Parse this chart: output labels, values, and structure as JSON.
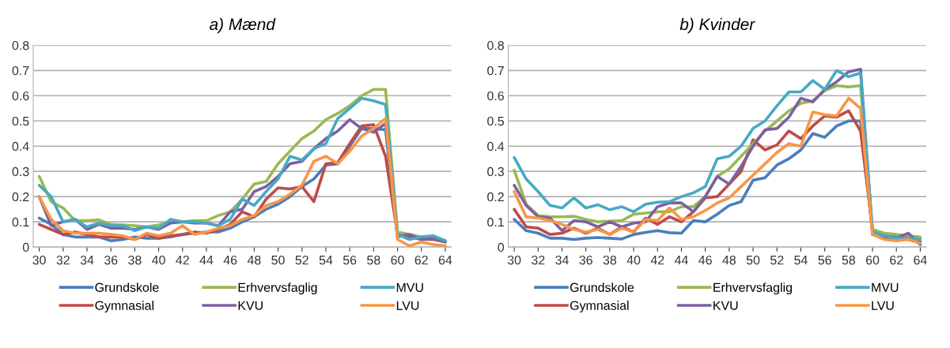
{
  "chart_data": [
    {
      "type": "line",
      "title": "a) Mænd",
      "x": [
        30,
        31,
        32,
        33,
        34,
        35,
        36,
        37,
        38,
        39,
        40,
        41,
        42,
        43,
        44,
        45,
        46,
        47,
        48,
        49,
        50,
        51,
        52,
        53,
        54,
        55,
        56,
        57,
        58,
        59,
        60,
        61,
        62,
        63,
        64
      ],
      "xlim": [
        29.5,
        64.5
      ],
      "xticks": [
        30,
        32,
        34,
        36,
        38,
        40,
        42,
        44,
        46,
        48,
        50,
        52,
        54,
        56,
        58,
        60,
        62,
        64
      ],
      "ylim": [
        0,
        0.8
      ],
      "yticks": [
        0,
        0.1,
        0.2,
        0.3,
        0.4,
        0.5,
        0.6,
        0.7,
        0.8
      ],
      "grid": "y",
      "legend": "bottom",
      "series": [
        {
          "name": "Grundskole",
          "color": "#4a7ebb",
          "values": [
            0.115,
            0.09,
            0.05,
            0.04,
            0.04,
            0.04,
            0.025,
            0.03,
            0.04,
            0.035,
            0.035,
            0.04,
            0.05,
            0.055,
            0.06,
            0.06,
            0.075,
            0.1,
            0.12,
            0.15,
            0.17,
            0.2,
            0.24,
            0.27,
            0.325,
            0.33,
            0.4,
            0.47,
            0.47,
            0.465,
            0.05,
            0.04,
            0.04,
            0.04,
            0.025
          ]
        },
        {
          "name": "Gymnasial",
          "color": "#be4b48",
          "values": [
            0.09,
            0.07,
            0.05,
            0.06,
            0.05,
            0.04,
            0.04,
            0.04,
            0.03,
            0.05,
            0.035,
            0.045,
            0.05,
            0.06,
            0.055,
            0.07,
            0.09,
            0.14,
            0.12,
            0.19,
            0.235,
            0.23,
            0.24,
            0.18,
            0.33,
            0.335,
            0.41,
            0.48,
            0.485,
            0.36,
            0.05,
            0.04,
            0.03,
            0.03,
            0.02
          ]
        },
        {
          "name": "Erhvervsfaglig",
          "color": "#98b954",
          "values": [
            0.28,
            0.18,
            0.155,
            0.105,
            0.105,
            0.108,
            0.09,
            0.088,
            0.085,
            0.08,
            0.088,
            0.1,
            0.1,
            0.105,
            0.105,
            0.125,
            0.14,
            0.19,
            0.25,
            0.26,
            0.33,
            0.38,
            0.43,
            0.46,
            0.505,
            0.53,
            0.56,
            0.6,
            0.625,
            0.625,
            0.06,
            0.05,
            0.04,
            0.035,
            0.025
          ]
        },
        {
          "name": "KVU",
          "color": "#7d60a0",
          "values": [
            0.2,
            0.085,
            0.1,
            0.11,
            0.07,
            0.09,
            0.075,
            0.075,
            0.07,
            0.08,
            0.07,
            0.095,
            0.1,
            0.095,
            0.095,
            0.085,
            0.14,
            0.15,
            0.22,
            0.24,
            0.28,
            0.33,
            0.34,
            0.39,
            0.43,
            0.46,
            0.505,
            0.47,
            0.455,
            0.49,
            0.04,
            0.05,
            0.03,
            0.035,
            0.02
          ]
        },
        {
          "name": "MVU",
          "color": "#46aac5",
          "values": [
            0.245,
            0.2,
            0.1,
            0.11,
            0.08,
            0.095,
            0.085,
            0.085,
            0.065,
            0.08,
            0.075,
            0.11,
            0.1,
            0.1,
            0.095,
            0.085,
            0.11,
            0.19,
            0.165,
            0.22,
            0.27,
            0.36,
            0.345,
            0.39,
            0.41,
            0.51,
            0.55,
            0.59,
            0.58,
            0.565,
            0.05,
            0.03,
            0.04,
            0.045,
            0.025
          ]
        },
        {
          "name": "LVU",
          "color": "#f79646",
          "values": [
            0.2,
            0.11,
            0.065,
            0.055,
            0.055,
            0.055,
            0.05,
            0.045,
            0.03,
            0.055,
            0.045,
            0.055,
            0.085,
            0.05,
            0.06,
            0.075,
            0.085,
            0.11,
            0.125,
            0.165,
            0.18,
            0.21,
            0.245,
            0.34,
            0.36,
            0.33,
            0.38,
            0.44,
            0.47,
            0.51,
            0.03,
            0.005,
            0.02,
            0.01,
            0.005
          ]
        }
      ]
    },
    {
      "type": "line",
      "title": "b) Kvinder",
      "x": [
        30,
        31,
        32,
        33,
        34,
        35,
        36,
        37,
        38,
        39,
        40,
        41,
        42,
        43,
        44,
        45,
        46,
        47,
        48,
        49,
        50,
        51,
        52,
        53,
        54,
        55,
        56,
        57,
        58,
        59,
        60,
        61,
        62,
        63,
        64
      ],
      "xlim": [
        29.5,
        64.5
      ],
      "xticks": [
        30,
        32,
        34,
        36,
        38,
        40,
        42,
        44,
        46,
        48,
        50,
        52,
        54,
        56,
        58,
        60,
        62,
        64
      ],
      "ylim": [
        0,
        0.8
      ],
      "yticks": [
        0,
        0.1,
        0.2,
        0.3,
        0.4,
        0.5,
        0.6,
        0.7,
        0.8
      ],
      "grid": "y",
      "legend": "bottom",
      "series": [
        {
          "name": "Grundskole",
          "color": "#4a7ebb",
          "values": [
            0.11,
            0.065,
            0.055,
            0.035,
            0.035,
            0.03,
            0.035,
            0.038,
            0.035,
            0.032,
            0.05,
            0.058,
            0.065,
            0.057,
            0.055,
            0.105,
            0.1,
            0.13,
            0.165,
            0.18,
            0.265,
            0.275,
            0.325,
            0.35,
            0.385,
            0.45,
            0.435,
            0.48,
            0.5,
            0.5,
            0.06,
            0.05,
            0.04,
            0.03,
            0.02
          ]
        },
        {
          "name": "Gymnasial",
          "color": "#be4b48",
          "values": [
            0.15,
            0.08,
            0.075,
            0.05,
            0.055,
            0.075,
            0.055,
            0.075,
            0.05,
            0.08,
            0.06,
            0.115,
            0.09,
            0.12,
            0.1,
            0.14,
            0.195,
            0.2,
            0.25,
            0.3,
            0.425,
            0.385,
            0.405,
            0.46,
            0.43,
            0.48,
            0.52,
            0.515,
            0.54,
            0.46,
            0.07,
            0.04,
            0.03,
            0.05,
            0.02
          ]
        },
        {
          "name": "Erhvervsfaglig",
          "color": "#98b954",
          "values": [
            0.305,
            0.17,
            0.125,
            0.12,
            0.12,
            0.122,
            0.11,
            0.1,
            0.103,
            0.105,
            0.13,
            0.135,
            0.14,
            0.14,
            0.16,
            0.16,
            0.2,
            0.28,
            0.31,
            0.36,
            0.41,
            0.46,
            0.5,
            0.54,
            0.57,
            0.58,
            0.62,
            0.64,
            0.635,
            0.64,
            0.07,
            0.055,
            0.05,
            0.045,
            0.04
          ]
        },
        {
          "name": "KVU",
          "color": "#7d60a0",
          "values": [
            0.245,
            0.165,
            0.12,
            0.115,
            0.065,
            0.105,
            0.1,
            0.08,
            0.1,
            0.08,
            0.095,
            0.1,
            0.16,
            0.175,
            0.175,
            0.14,
            0.2,
            0.28,
            0.25,
            0.32,
            0.4,
            0.465,
            0.47,
            0.515,
            0.59,
            0.575,
            0.625,
            0.655,
            0.695,
            0.705,
            0.05,
            0.04,
            0.035,
            0.055,
            0.01
          ]
        },
        {
          "name": "MVU",
          "color": "#46aac5",
          "values": [
            0.355,
            0.27,
            0.22,
            0.165,
            0.155,
            0.195,
            0.155,
            0.168,
            0.148,
            0.16,
            0.14,
            0.17,
            0.178,
            0.18,
            0.2,
            0.215,
            0.24,
            0.35,
            0.36,
            0.4,
            0.47,
            0.5,
            0.56,
            0.615,
            0.615,
            0.66,
            0.625,
            0.7,
            0.675,
            0.69,
            0.06,
            0.045,
            0.035,
            0.035,
            0.03
          ]
        },
        {
          "name": "LVU",
          "color": "#f79646",
          "values": [
            0.22,
            0.12,
            0.115,
            0.105,
            0.09,
            0.07,
            0.06,
            0.07,
            0.05,
            0.075,
            0.06,
            0.11,
            0.105,
            0.155,
            0.11,
            0.12,
            0.145,
            0.175,
            0.195,
            0.24,
            0.285,
            0.33,
            0.375,
            0.41,
            0.4,
            0.535,
            0.525,
            0.52,
            0.59,
            0.55,
            0.05,
            0.03,
            0.025,
            0.03,
            0.015
          ]
        }
      ]
    }
  ]
}
